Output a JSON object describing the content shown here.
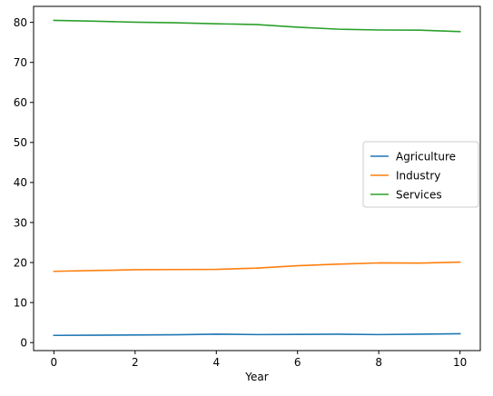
{
  "chart_data": {
    "type": "line",
    "title": "",
    "xlabel": "Year",
    "ylabel": "",
    "x": [
      0,
      1,
      2,
      3,
      4,
      5,
      6,
      7,
      8,
      9,
      10
    ],
    "xlim": [
      -0.5,
      10.5
    ],
    "ylim": [
      -2,
      84
    ],
    "xticks": [
      0,
      2,
      4,
      6,
      8,
      10
    ],
    "yticks": [
      0,
      10,
      20,
      30,
      40,
      50,
      60,
      70,
      80
    ],
    "grid": false,
    "legend_position": "center-right",
    "series": [
      {
        "name": "Agriculture",
        "color": "#1f77b4",
        "values": [
          1.8,
          1.85,
          1.9,
          1.95,
          2.1,
          2.0,
          2.05,
          2.1,
          2.0,
          2.1,
          2.2
        ]
      },
      {
        "name": "Industry",
        "color": "#ff7f0e",
        "values": [
          17.8,
          18.0,
          18.2,
          18.25,
          18.3,
          18.6,
          19.2,
          19.6,
          19.9,
          19.85,
          20.1
        ]
      },
      {
        "name": "Services",
        "color": "#2ca02c",
        "values": [
          80.5,
          80.3,
          80.05,
          79.9,
          79.65,
          79.45,
          78.8,
          78.3,
          78.1,
          78.05,
          77.7
        ]
      }
    ]
  }
}
